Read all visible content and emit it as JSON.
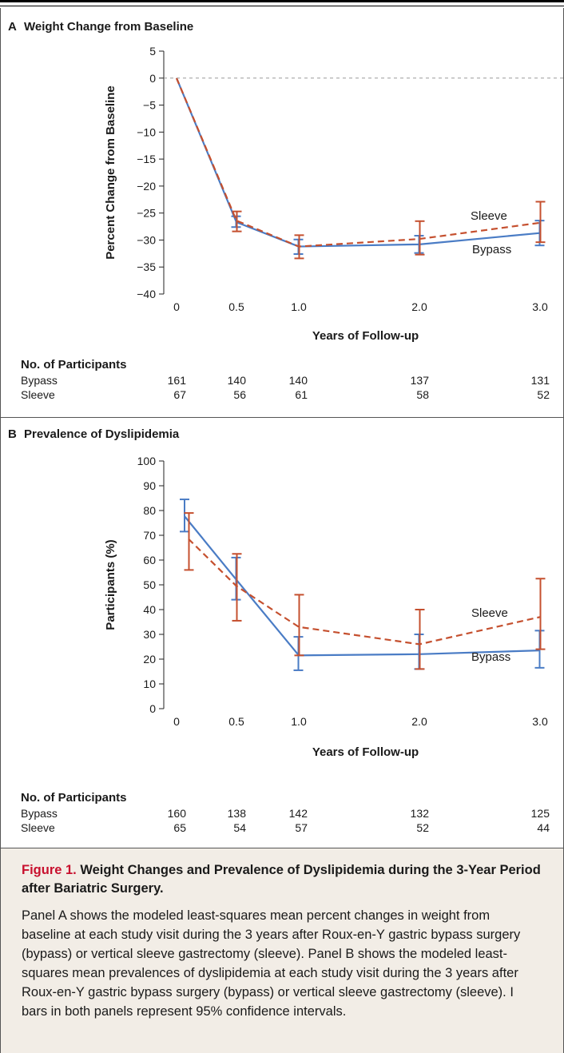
{
  "chart_data": [
    {
      "panel": "A",
      "type": "line",
      "title": "Weight Change from Baseline",
      "ylabel": "Percent Change from Baseline",
      "xlabel": "Years of Follow-up",
      "ylim": [
        -40,
        5
      ],
      "yticks": [
        "5",
        "0",
        "−5",
        "−10",
        "−15",
        "−20",
        "−25",
        "−30",
        "−35",
        "−40"
      ],
      "xticks": [
        "0",
        "0.5",
        "1.0",
        "2.0",
        "3.0"
      ],
      "reference_line": 0,
      "series": [
        {
          "name": "Bypass",
          "color": "#4a7cc5",
          "dash": "solid",
          "points": [
            {
              "x": 0,
              "y": 0
            },
            {
              "x": 0.5,
              "y": -26.7,
              "lo": -27.6,
              "hi": -25.6
            },
            {
              "x": 1.0,
              "y": -31.2,
              "lo": -32.6,
              "hi": -29.9
            },
            {
              "x": 2.0,
              "y": -30.8,
              "lo": -32.4,
              "hi": -29.2
            },
            {
              "x": 3.0,
              "y": -28.7,
              "lo": -31.0,
              "hi": -26.4
            }
          ]
        },
        {
          "name": "Sleeve",
          "color": "#c5502f",
          "dash": "dashed",
          "points": [
            {
              "x": 0,
              "y": 0
            },
            {
              "x": 0.5,
              "y": -26.4,
              "lo": -28.4,
              "hi": -24.7
            },
            {
              "x": 1.0,
              "y": -31.2,
              "lo": -33.4,
              "hi": -29.1
            },
            {
              "x": 2.0,
              "y": -29.8,
              "lo": -32.7,
              "hi": -26.5
            },
            {
              "x": 3.0,
              "y": -26.8,
              "lo": -30.4,
              "hi": -22.9
            }
          ]
        }
      ],
      "participants": {
        "header": "No. of Participants",
        "rows": [
          {
            "label": "Bypass",
            "values": [
              "161",
              "140",
              "140",
              "137",
              "131"
            ]
          },
          {
            "label": "Sleeve",
            "values": [
              "67",
              "56",
              "61",
              "58",
              "52"
            ]
          }
        ]
      }
    },
    {
      "panel": "B",
      "type": "line",
      "title": "Prevalence of Dyslipidemia",
      "ylabel": "Participants (%)",
      "xlabel": "Years of Follow-up",
      "ylim": [
        0,
        100
      ],
      "yticks": [
        "100",
        "90",
        "80",
        "70",
        "60",
        "50",
        "40",
        "30",
        "20",
        "10",
        "0"
      ],
      "xticks": [
        "0",
        "0.5",
        "1.0",
        "2.0",
        "3.0"
      ],
      "series": [
        {
          "name": "Bypass",
          "color": "#4a7cc5",
          "dash": "solid",
          "points": [
            {
              "x": 0.07,
              "y": 77.5,
              "lo": 71.5,
              "hi": 84.5
            },
            {
              "x": 0.5,
              "y": 52.0,
              "lo": 44.0,
              "hi": 61.0
            },
            {
              "x": 1.0,
              "y": 21.5,
              "lo": 15.5,
              "hi": 29.0
            },
            {
              "x": 2.0,
              "y": 22.0,
              "lo": 16.0,
              "hi": 30.0
            },
            {
              "x": 3.0,
              "y": 23.5,
              "lo": 16.5,
              "hi": 31.5
            }
          ]
        },
        {
          "name": "Sleeve",
          "color": "#c5502f",
          "dash": "dashed",
          "points": [
            {
              "x": 0.1,
              "y": 68.5,
              "lo": 56.0,
              "hi": 79.0
            },
            {
              "x": 0.5,
              "y": 49.5,
              "lo": 35.5,
              "hi": 62.5
            },
            {
              "x": 1.0,
              "y": 33.0,
              "lo": 21.5,
              "hi": 46.0
            },
            {
              "x": 2.0,
              "y": 26.0,
              "lo": 16.0,
              "hi": 40.0
            },
            {
              "x": 3.0,
              "y": 37.0,
              "lo": 24.0,
              "hi": 52.5
            }
          ]
        }
      ],
      "participants": {
        "header": "No. of Participants",
        "rows": [
          {
            "label": "Bypass",
            "values": [
              "160",
              "138",
              "142",
              "132",
              "125"
            ]
          },
          {
            "label": "Sleeve",
            "values": [
              "65",
              "54",
              "57",
              "52",
              "44"
            ]
          }
        ]
      }
    }
  ],
  "caption": {
    "figure_label": "Figure 1.",
    "title": "Weight Changes and Prevalence of Dyslipidemia during the 3-Year Period after Bariatric Surgery.",
    "body": "Panel A shows the modeled least-squares mean percent changes in weight from baseline at each study visit during the 3 years after Roux-en-Y gastric bypass surgery (bypass) or vertical sleeve gastrectomy (sleeve). Panel B shows the modeled least-squares mean prevalences of dyslipidemia at each study visit during the 3 years after Roux-en-Y gastric bypass surgery (bypass) or vertical sleeve gastrectomy (sleeve). I bars in both panels represent 95% confidence intervals."
  }
}
